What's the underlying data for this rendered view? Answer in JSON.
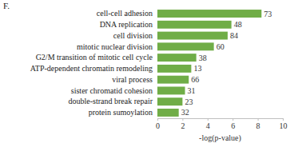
{
  "chart_data": {
    "type": "bar",
    "title": "F.",
    "orientation": "horizontal",
    "categories": [
      "cell-cell adhesion",
      "DNA replication",
      "cell division",
      "mitotic nuclear division",
      "G2/M transition of mitotic cell cycle",
      "ATP-dependent chromatin remodeling",
      "viral process",
      "sister chromatid cohesion",
      "double-strand break repair",
      "protein sumoylation"
    ],
    "values": [
      8.3,
      5.9,
      5.6,
      4.5,
      3.1,
      2.7,
      2.5,
      2.2,
      2.0,
      1.7
    ],
    "counts": [
      73,
      48,
      84,
      60,
      38,
      13,
      66,
      31,
      23,
      32
    ],
    "color": "#70ad47",
    "x_label": "-log(p-value)",
    "xlim": [
      0,
      10
    ],
    "xticks": [
      0,
      2,
      4,
      6,
      8,
      10
    ],
    "grid": false
  }
}
